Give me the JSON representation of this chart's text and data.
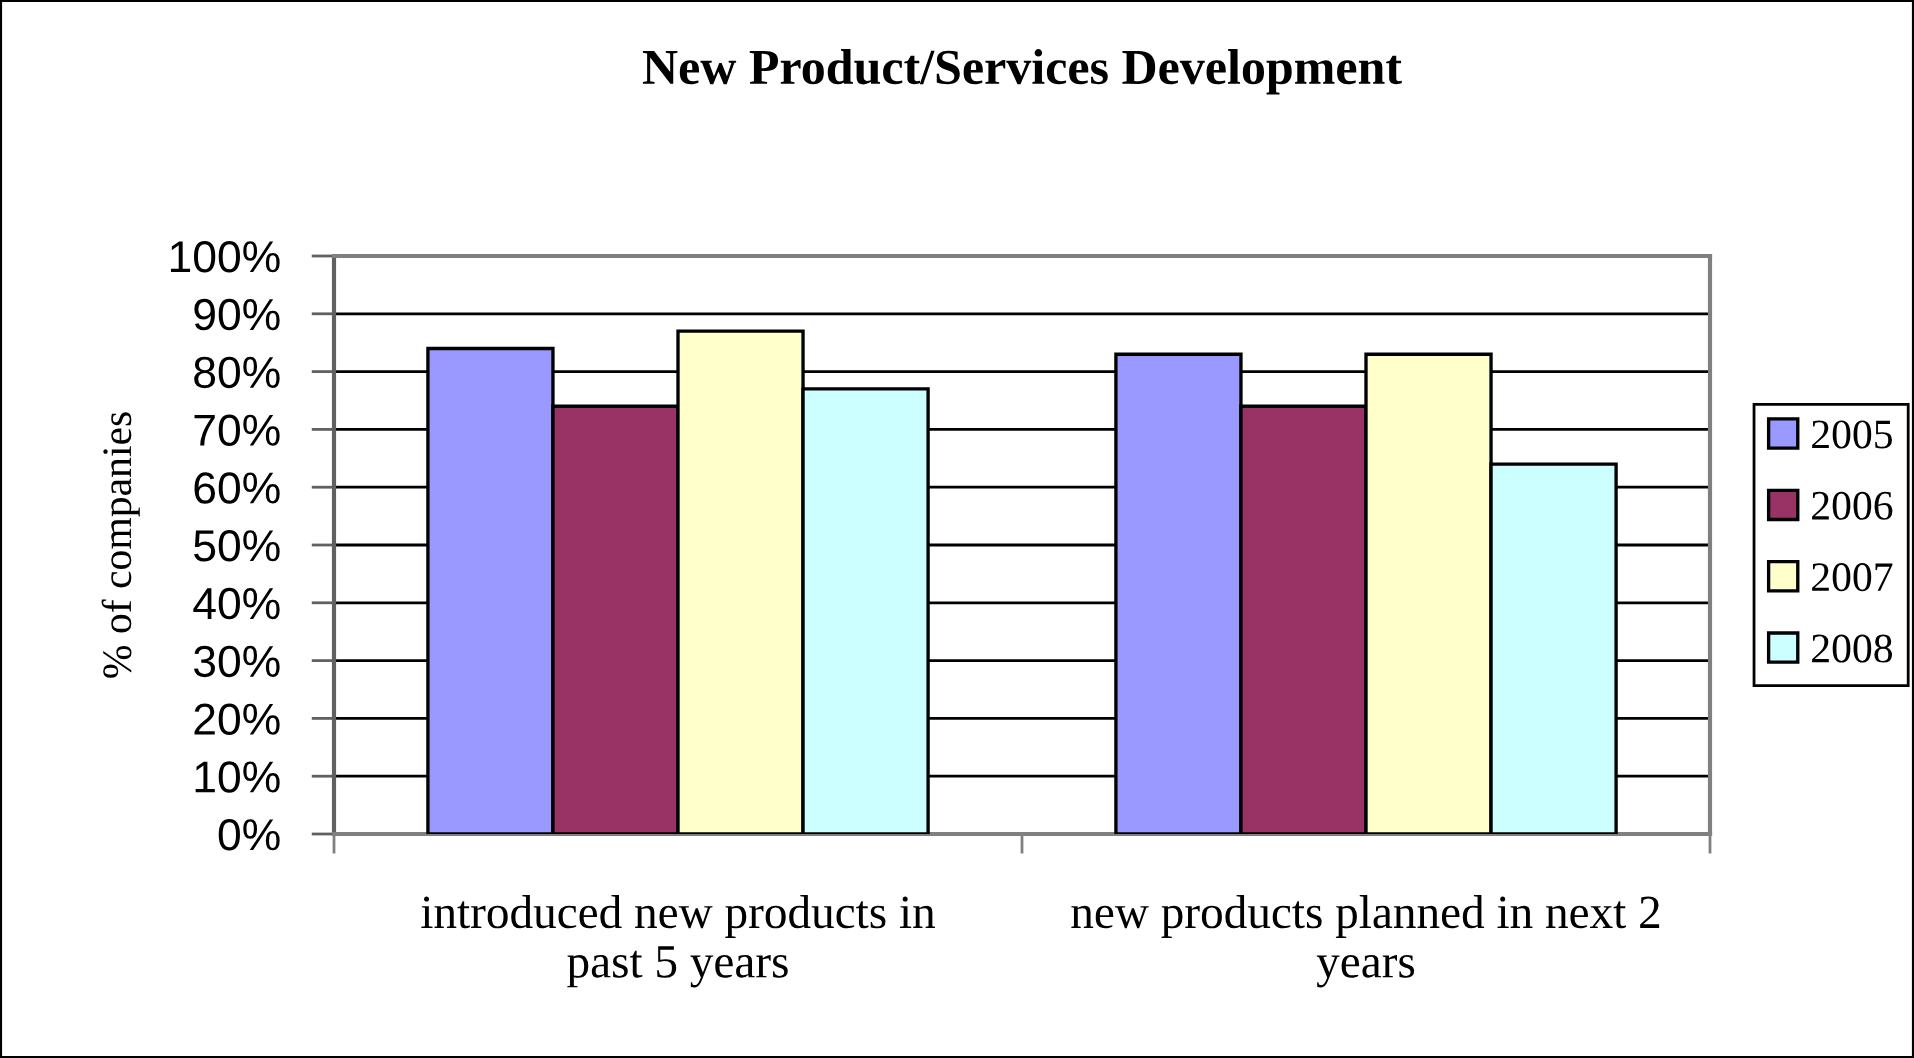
{
  "chart_data": {
    "type": "bar",
    "title": "New Product/Services Development",
    "ylabel": "% of companies",
    "categories": [
      "introduced new products in\npast 5 years",
      "new products planned in next 2\nyears"
    ],
    "series": [
      {
        "name": "2005",
        "color": "#9999ff",
        "values": [
          84,
          83
        ]
      },
      {
        "name": "2006",
        "color": "#993366",
        "values": [
          74,
          74
        ]
      },
      {
        "name": "2007",
        "color": "#ffffcc",
        "values": [
          87,
          83
        ]
      },
      {
        "name": "2008",
        "color": "#ccffff",
        "values": [
          77,
          64
        ]
      }
    ],
    "ylim": [
      0,
      100
    ],
    "yticks": [
      {
        "value": 0,
        "label": "0%"
      },
      {
        "value": 10,
        "label": "10%"
      },
      {
        "value": 20,
        "label": "20%"
      },
      {
        "value": 30,
        "label": "30%"
      },
      {
        "value": 40,
        "label": "40%"
      },
      {
        "value": 50,
        "label": "50%"
      },
      {
        "value": 60,
        "label": "60%"
      },
      {
        "value": 70,
        "label": "70%"
      },
      {
        "value": 80,
        "label": "80%"
      },
      {
        "value": 90,
        "label": "90%"
      },
      {
        "value": 100,
        "label": "100%"
      }
    ],
    "grid": "y",
    "legend": "right"
  }
}
